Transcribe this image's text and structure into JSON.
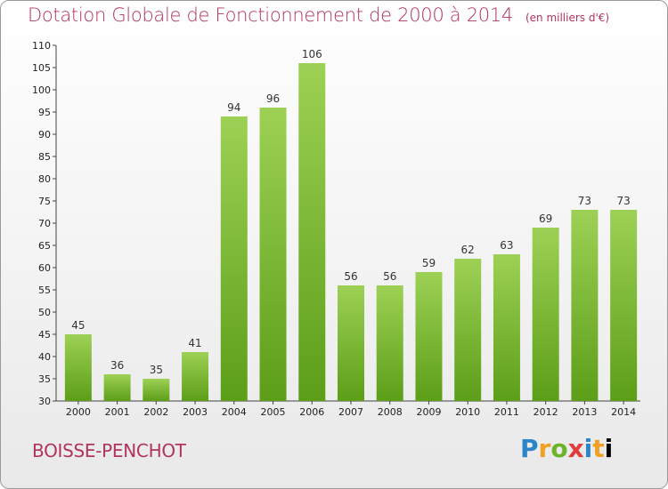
{
  "title": "Dotation Globale de Fonctionnement de 2000 à 2014",
  "unit": "(en milliers d'€)",
  "commune": "BOISSE-PENCHOT",
  "logo": [
    "P",
    "r",
    "o",
    "x",
    "i",
    "t",
    "i"
  ],
  "colors": {
    "bar_top": "#9dd155",
    "bar_bottom": "#5c9e18",
    "title": "#b0345f"
  },
  "chart_data": {
    "type": "bar",
    "categories": [
      "2000",
      "2001",
      "2002",
      "2003",
      "2004",
      "2005",
      "2006",
      "2007",
      "2008",
      "2009",
      "2010",
      "2011",
      "2012",
      "2013",
      "2014"
    ],
    "values": [
      45,
      36,
      35,
      41,
      94,
      96,
      106,
      56,
      56,
      59,
      62,
      63,
      69,
      73,
      73
    ],
    "title": "Dotation Globale de Fonctionnement de 2000 à 2014",
    "xlabel": "",
    "ylabel": "",
    "ylim": [
      30,
      110
    ],
    "yticks": [
      30,
      35,
      40,
      45,
      50,
      55,
      60,
      65,
      70,
      75,
      80,
      85,
      90,
      95,
      100,
      105,
      110
    ],
    "grid": false,
    "data_labels": true
  }
}
